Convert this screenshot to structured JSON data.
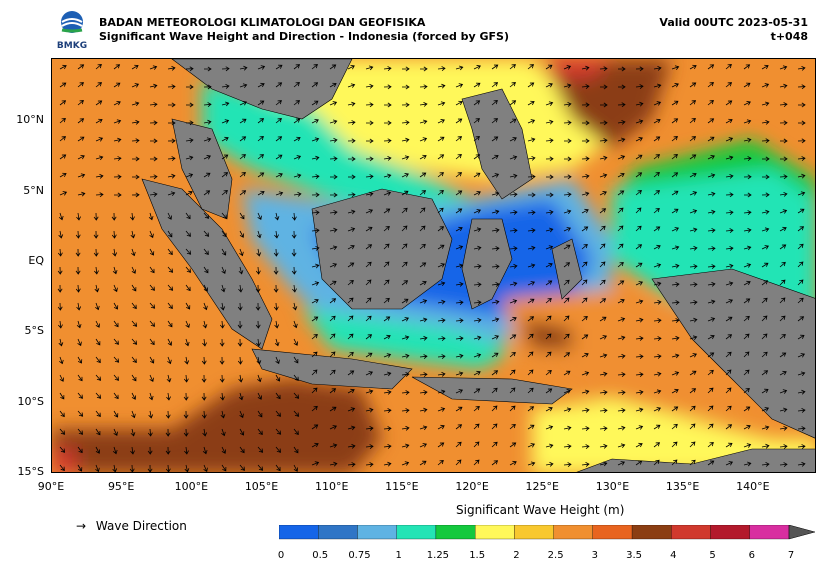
{
  "header": {
    "agency": "BADAN METEOROLOGI KLIMATOLOGI DAN GEOFISIKA",
    "title": "Significant Wave Height and Direction - Indonesia (forced by GFS)",
    "valid": "Valid 00UTC 2023-05-31",
    "lead": "t+048",
    "logo_text": "BMKG"
  },
  "map": {
    "y_ticks": [
      {
        "label": "10°N",
        "lat": 10
      },
      {
        "label": "5°N",
        "lat": 5
      },
      {
        "label": "EQ",
        "lat": 0
      },
      {
        "label": "5°S",
        "lat": -5
      },
      {
        "label": "10°S",
        "lat": -10
      },
      {
        "label": "15°S",
        "lat": -15
      }
    ],
    "x_ticks": [
      {
        "label": "90°E",
        "lon": 90
      },
      {
        "label": "95°E",
        "lon": 95
      },
      {
        "label": "100°E",
        "lon": 100
      },
      {
        "label": "105°E",
        "lon": 105
      },
      {
        "label": "110°E",
        "lon": 110
      },
      {
        "label": "115°E",
        "lon": 115
      },
      {
        "label": "120°E",
        "lon": 120
      },
      {
        "label": "125°E",
        "lon": 125
      },
      {
        "label": "130°E",
        "lon": 130
      },
      {
        "label": "135°E",
        "lon": 135
      },
      {
        "label": "140°E",
        "lon": 140
      }
    ],
    "lon_range": [
      90,
      144.5
    ],
    "lat_range": [
      -15,
      14.5
    ],
    "land_color": "#808080",
    "arrow_color": "#000000"
  },
  "legend": {
    "wave_direction_label": "Wave Direction",
    "arrow_symbol": "→"
  },
  "colorbar": {
    "title": "Significant Wave Height (m)",
    "labels": [
      "0",
      "0.5",
      "0.75",
      "1",
      "1.25",
      "1.5",
      "2",
      "2.5",
      "3",
      "3.5",
      "4",
      "5",
      "6",
      "7"
    ],
    "colors": [
      "#1565e8",
      "#2f75c6",
      "#5fb3e3",
      "#23e4b5",
      "#14c93e",
      "#fff85a",
      "#f8c82e",
      "#f08f30",
      "#e8641f",
      "#8b3e13",
      "#d0392d",
      "#b3192c",
      "#d82ea0",
      "#9b2aa8"
    ],
    "extend_color": "#555555"
  }
}
